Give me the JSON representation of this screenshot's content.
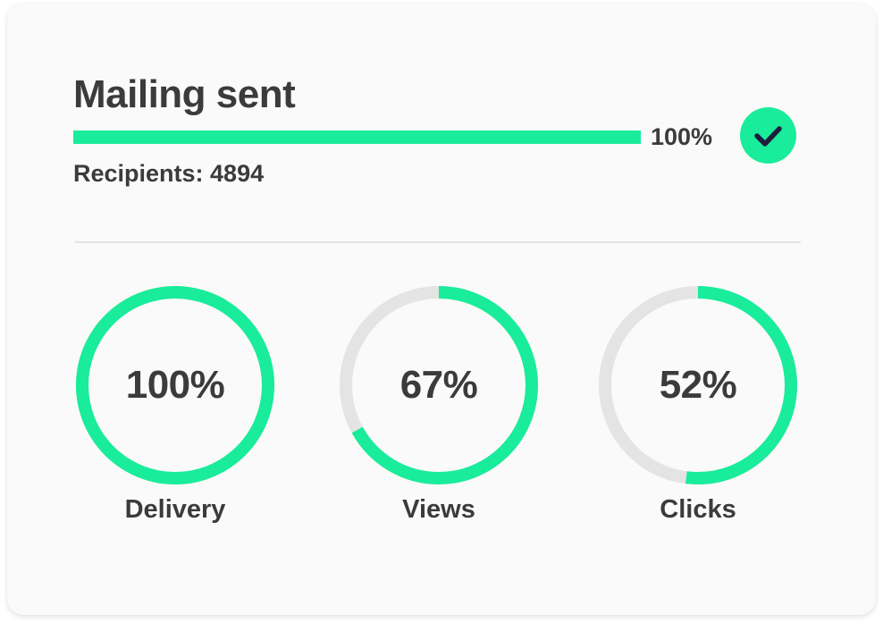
{
  "mailing": {
    "title": "Mailing sent",
    "progress": {
      "value": 100,
      "label": "100%"
    },
    "status_icon": "check-icon",
    "recipients_label": "Recipients: 4894"
  },
  "metrics": [
    {
      "value": 100,
      "display": "100%",
      "label": "Delivery"
    },
    {
      "value": 67,
      "display": "67%",
      "label": "Views"
    },
    {
      "value": 52,
      "display": "52%",
      "label": "Clicks"
    }
  ],
  "colors": {
    "accent": "#19ec9a",
    "track": "#e4e4e4",
    "text": "#3b3b3b",
    "check": "#1e1e3c",
    "card_background": "#fafafa"
  }
}
